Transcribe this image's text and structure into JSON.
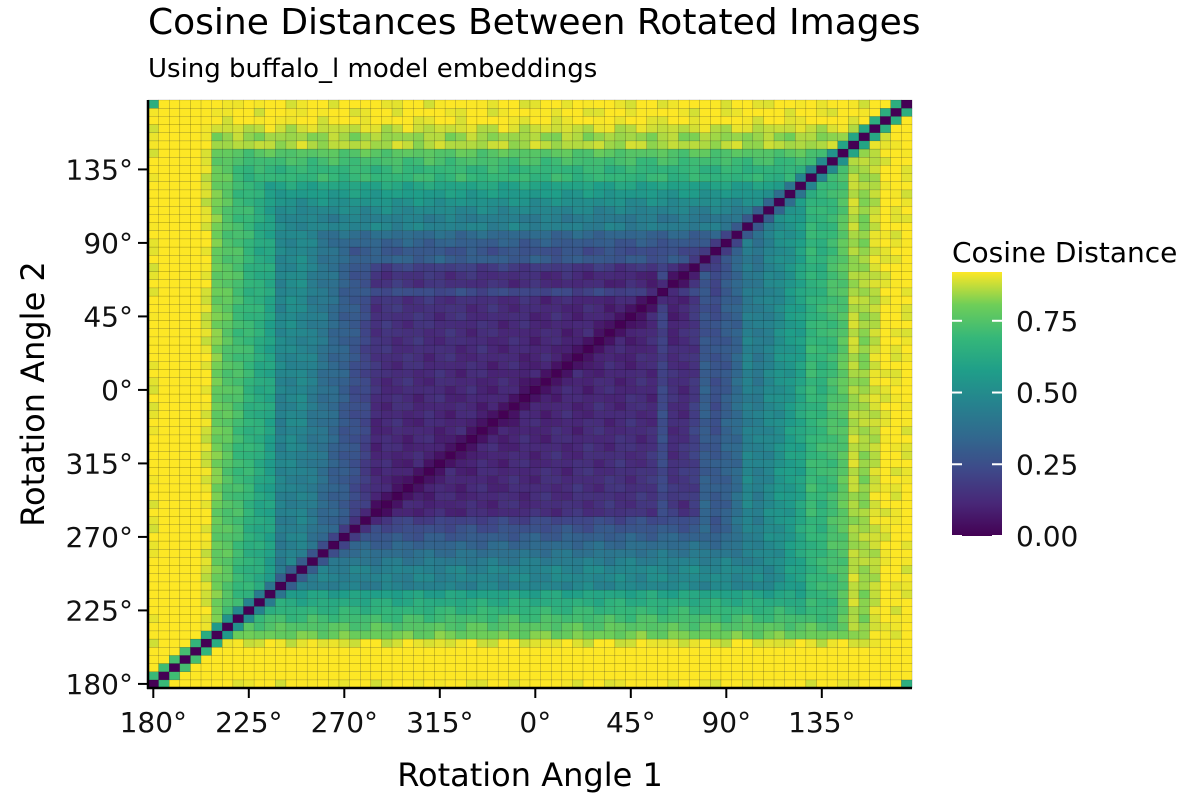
{
  "chart_data": {
    "type": "heatmap",
    "title": "Cosine Distances Between Rotated Images",
    "subtitle": "Using buffalo_l model embeddings",
    "xlabel": "Rotation Angle 1",
    "ylabel": "Rotation Angle 2",
    "x_ticks": [
      "180°",
      "225°",
      "270°",
      "315°",
      "0°",
      "45°",
      "90°",
      "135°"
    ],
    "y_ticks": [
      "180°",
      "225°",
      "270°",
      "315°",
      "0°",
      "45°",
      "90°",
      "135°"
    ],
    "axis_order_degrees": "rotation angle from 180° through 359°, then 0° through 175°",
    "angle_step_degrees": 5,
    "value_range": [
      0,
      0.92
    ],
    "colormap": "viridis",
    "legend": {
      "title": "Cosine Distance",
      "labels": [
        "0.00",
        "0.25",
        "0.50",
        "0.75"
      ],
      "values": [
        0,
        0.25,
        0.5,
        0.75
      ],
      "placement": "right"
    },
    "description_values": {
      "diagonal": 0.0,
      "core_region_0_to_70_deg": 0.1,
      "near_180_deg_band": 0.85
    }
  }
}
